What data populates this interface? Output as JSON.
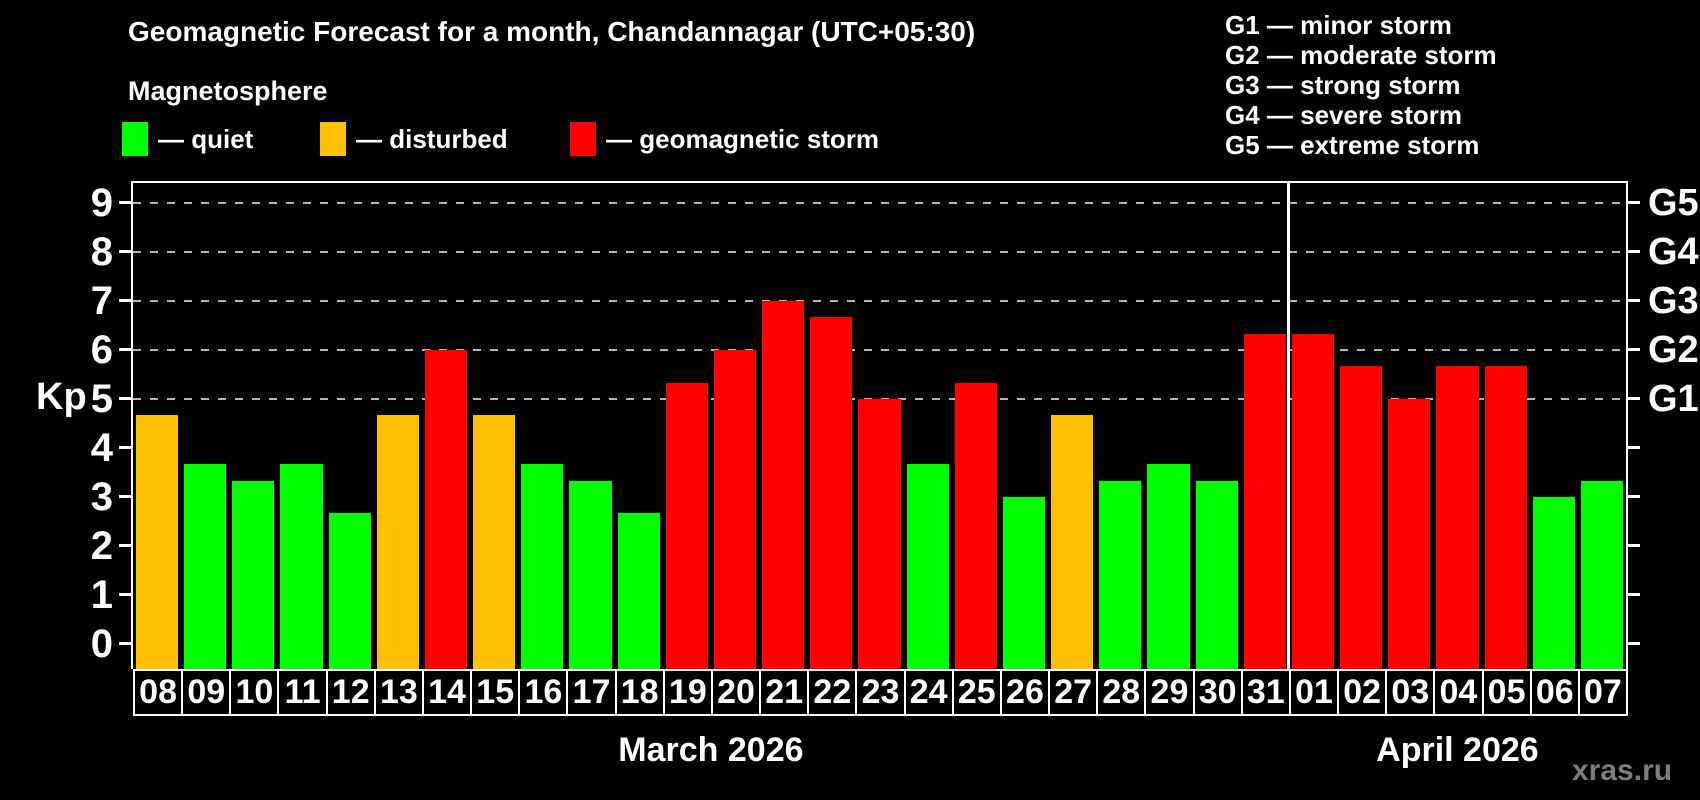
{
  "title": "Geomagnetic Forecast for a month, Chandannagar (UTC+05:30)",
  "subtitle": "Magnetosphere",
  "legend": {
    "items": [
      {
        "label": "— quiet",
        "status": "quiet",
        "color": "#00ff00"
      },
      {
        "label": "— disturbed",
        "status": "disturbed",
        "color": "#ffc000"
      },
      {
        "label": "— geomagnetic storm",
        "status": "storm",
        "color": "#ff0000"
      }
    ]
  },
  "g_legend": {
    "items": [
      "G1 — minor storm",
      "G2 — moderate storm",
      "G3 — strong storm",
      "G4 — severe storm",
      "G5 — extreme storm"
    ]
  },
  "chart_data": {
    "type": "bar",
    "title": "Geomagnetic Forecast for a month, Chandannagar (UTC+05:30)",
    "ylabel": "Kp",
    "ylim": [
      0,
      9
    ],
    "yticks": [
      0,
      1,
      2,
      3,
      4,
      5,
      6,
      7,
      8,
      9
    ],
    "gridlines_at": [
      5,
      6,
      7,
      8,
      9
    ],
    "grid": "dashed horizontal at storm levels only",
    "right_axis_labels": [
      {
        "label": "G1",
        "kp": 5
      },
      {
        "label": "G2",
        "kp": 6
      },
      {
        "label": "G3",
        "kp": 7
      },
      {
        "label": "G4",
        "kp": 8
      },
      {
        "label": "G5",
        "kp": 9
      }
    ],
    "categories": [
      "08",
      "09",
      "10",
      "11",
      "12",
      "13",
      "14",
      "15",
      "16",
      "17",
      "18",
      "19",
      "20",
      "21",
      "22",
      "23",
      "24",
      "25",
      "26",
      "27",
      "28",
      "29",
      "30",
      "31",
      "01",
      "02",
      "03",
      "04",
      "05",
      "06",
      "07"
    ],
    "values": [
      4.67,
      3.67,
      3.33,
      3.67,
      2.67,
      4.67,
      6.0,
      4.67,
      3.67,
      3.33,
      2.67,
      5.33,
      6.0,
      7.0,
      6.67,
      5.0,
      3.67,
      5.33,
      3.0,
      4.67,
      3.33,
      3.67,
      3.33,
      6.33,
      6.33,
      5.67,
      5.0,
      5.67,
      5.67,
      3.0,
      3.33
    ],
    "statuses": [
      "disturbed",
      "quiet",
      "quiet",
      "quiet",
      "quiet",
      "disturbed",
      "storm",
      "disturbed",
      "quiet",
      "quiet",
      "quiet",
      "storm",
      "storm",
      "storm",
      "storm",
      "storm",
      "quiet",
      "storm",
      "quiet",
      "disturbed",
      "quiet",
      "quiet",
      "quiet",
      "storm",
      "storm",
      "storm",
      "storm",
      "storm",
      "storm",
      "quiet",
      "quiet"
    ],
    "colors": {
      "quiet": "#00ff00",
      "disturbed": "#ffc000",
      "storm": "#ff0000"
    },
    "months": [
      {
        "label": "March 2026",
        "days": 24
      },
      {
        "label": "April 2026",
        "days": 7
      }
    ],
    "legend_position": "top-left and top-right"
  },
  "watermark": "xras.ru"
}
